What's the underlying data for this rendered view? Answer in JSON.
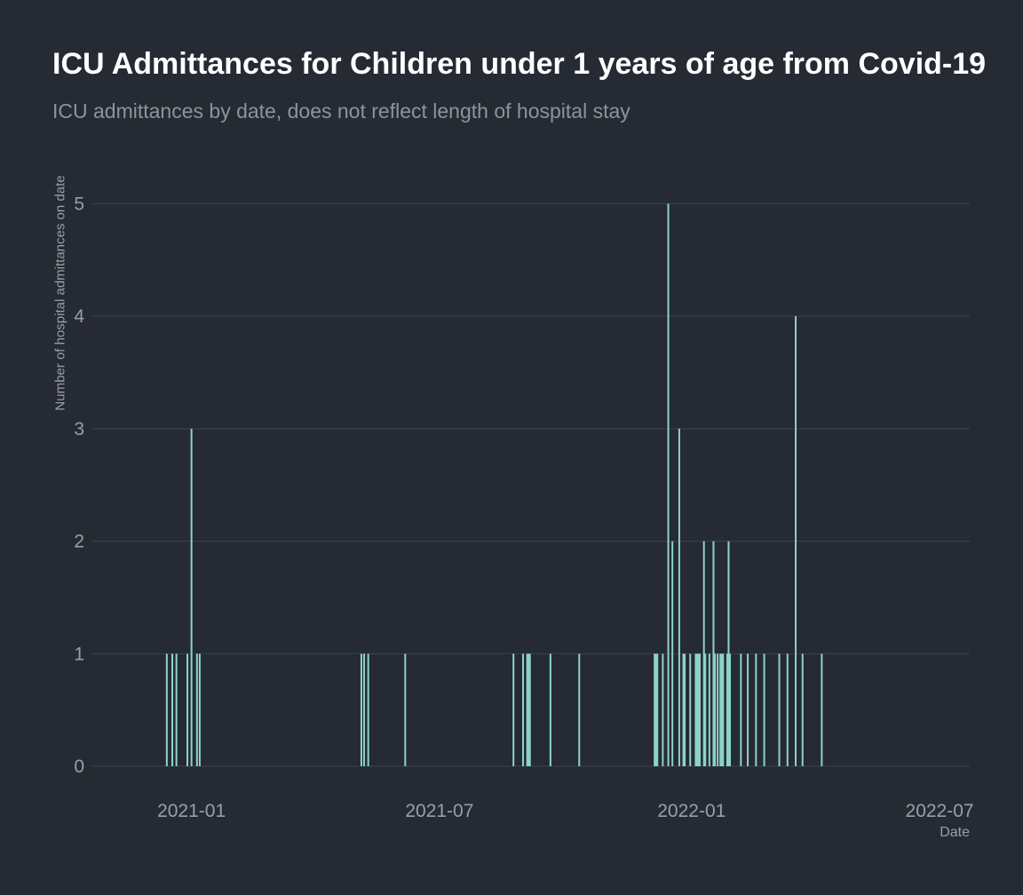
{
  "chart_data": {
    "type": "bar",
    "title": "ICU Admittances for Children under 1 years of age from Covid-19",
    "subtitle": "ICU admittances by date, does not reflect length of hospital stay",
    "xlabel": "Date",
    "ylabel": "Number of hospital admittances on date",
    "x_ticks": [
      "2021-01",
      "2021-07",
      "2022-01",
      "2022-07"
    ],
    "y_ticks": [
      0,
      1,
      2,
      3,
      4,
      5
    ],
    "xlim": [
      "2020-10-20",
      "2022-07-23"
    ],
    "ylim": [
      0,
      5.35
    ],
    "grid": true,
    "bar_color": "#8dd3c7",
    "x": [
      "2020-12-14",
      "2020-12-18",
      "2020-12-21",
      "2020-12-29",
      "2021-01-01",
      "2021-01-05",
      "2021-01-07",
      "2021-05-05",
      "2021-05-07",
      "2021-05-10",
      "2021-06-06",
      "2021-08-24",
      "2021-08-31",
      "2021-09-03",
      "2021-09-04",
      "2021-09-05",
      "2021-09-20",
      "2021-10-11",
      "2021-12-05",
      "2021-12-06",
      "2021-12-07",
      "2021-12-11",
      "2021-12-15",
      "2021-12-18",
      "2021-12-23",
      "2021-12-26",
      "2021-12-27",
      "2021-12-31",
      "2022-01-04",
      "2022-01-05",
      "2022-01-06",
      "2022-01-07",
      "2022-01-10",
      "2022-01-11",
      "2022-01-14",
      "2022-01-17",
      "2022-01-18",
      "2022-01-20",
      "2022-01-22",
      "2022-01-23",
      "2022-01-24",
      "2022-01-27",
      "2022-01-28",
      "2022-01-29",
      "2022-02-06",
      "2022-02-11",
      "2022-02-17",
      "2022-02-23",
      "2022-03-06",
      "2022-03-12",
      "2022-03-18",
      "2022-03-23",
      "2022-04-06"
    ],
    "values": [
      1,
      1,
      1,
      1,
      3,
      1,
      1,
      1,
      1,
      1,
      1,
      1,
      1,
      1,
      1,
      1,
      1,
      1,
      1,
      1,
      1,
      1,
      5,
      2,
      3,
      1,
      1,
      1,
      1,
      1,
      1,
      1,
      2,
      1,
      1,
      2,
      1,
      1,
      1,
      1,
      1,
      1,
      2,
      1,
      1,
      1,
      1,
      1,
      1,
      1,
      4,
      1,
      1
    ]
  }
}
